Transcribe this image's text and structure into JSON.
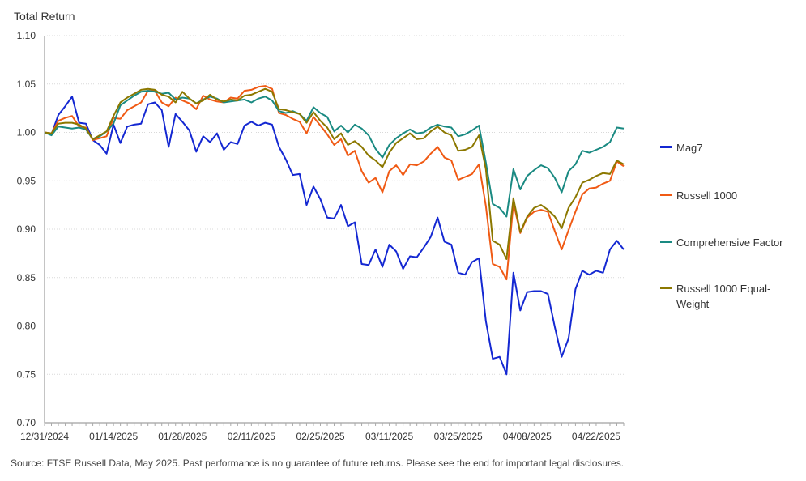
{
  "chart_data": {
    "type": "line",
    "ylabel": "Total Return",
    "xlabel": "",
    "ylim": [
      0.7,
      1.1
    ],
    "yticks": [
      "0.70",
      "0.75",
      "0.80",
      "0.85",
      "0.90",
      "0.95",
      "1.00",
      "1.05",
      "1.10"
    ],
    "xticks": [
      "12/31/2024",
      "01/14/2025",
      "01/28/2025",
      "02/11/2025",
      "02/25/2025",
      "03/11/2025",
      "03/25/2025",
      "04/08/2025",
      "04/22/2025"
    ],
    "x_start": "12/31/2024",
    "x_end": "05/06/2025",
    "grid": "horizontal dotted",
    "legend_position": "right",
    "series": [
      {
        "name": "Mag7",
        "color": "#1428d2",
        "values": [
          1.0,
          0.998,
          1.018,
          1.027,
          1.037,
          1.01,
          1.009,
          0.992,
          0.987,
          0.978,
          1.008,
          0.989,
          1.006,
          1.008,
          1.009,
          1.029,
          1.031,
          1.023,
          0.985,
          1.019,
          1.011,
          1.002,
          0.98,
          0.996,
          0.99,
          0.999,
          0.982,
          0.99,
          0.988,
          1.007,
          1.011,
          1.007,
          1.01,
          1.008,
          0.985,
          0.972,
          0.956,
          0.957,
          0.925,
          0.944,
          0.931,
          0.912,
          0.911,
          0.925,
          0.903,
          0.907,
          0.864,
          0.863,
          0.879,
          0.861,
          0.884,
          0.877,
          0.859,
          0.872,
          0.871,
          0.881,
          0.892,
          0.912,
          0.887,
          0.884,
          0.855,
          0.853,
          0.866,
          0.87,
          0.805,
          0.766,
          0.768,
          0.75,
          0.855,
          0.816,
          0.835,
          0.836,
          0.836,
          0.833,
          0.799,
          0.768,
          0.787,
          0.838,
          0.857,
          0.853,
          0.857,
          0.855,
          0.879,
          0.888,
          0.879
        ]
      },
      {
        "name": "Russell 1000",
        "color": "#f05a14",
        "values": [
          1.0,
          0.999,
          1.012,
          1.015,
          1.017,
          1.006,
          1.005,
          0.992,
          0.994,
          0.996,
          1.015,
          1.014,
          1.023,
          1.027,
          1.031,
          1.043,
          1.043,
          1.031,
          1.027,
          1.036,
          1.033,
          1.03,
          1.024,
          1.038,
          1.034,
          1.032,
          1.031,
          1.036,
          1.035,
          1.043,
          1.044,
          1.047,
          1.048,
          1.045,
          1.02,
          1.018,
          1.014,
          1.011,
          0.999,
          1.016,
          1.007,
          0.998,
          0.987,
          0.993,
          0.976,
          0.981,
          0.96,
          0.948,
          0.953,
          0.938,
          0.96,
          0.966,
          0.956,
          0.967,
          0.966,
          0.97,
          0.978,
          0.985,
          0.974,
          0.971,
          0.951,
          0.954,
          0.957,
          0.967,
          0.924,
          0.864,
          0.861,
          0.848,
          0.927,
          0.896,
          0.912,
          0.918,
          0.92,
          0.918,
          0.898,
          0.879,
          0.899,
          0.918,
          0.936,
          0.942,
          0.943,
          0.947,
          0.95,
          0.97,
          0.965
        ]
      },
      {
        "name": "Comprehensive Factor",
        "color": "#1a8a82",
        "values": [
          1.0,
          0.997,
          1.006,
          1.005,
          1.004,
          1.005,
          1.003,
          0.993,
          0.996,
          1.001,
          1.009,
          1.028,
          1.033,
          1.038,
          1.042,
          1.043,
          1.042,
          1.04,
          1.041,
          1.034,
          1.036,
          1.035,
          1.03,
          1.034,
          1.037,
          1.035,
          1.031,
          1.032,
          1.033,
          1.034,
          1.031,
          1.035,
          1.037,
          1.033,
          1.022,
          1.02,
          1.022,
          1.019,
          1.012,
          1.026,
          1.02,
          1.016,
          1.001,
          1.007,
          1.0,
          1.008,
          1.004,
          0.997,
          0.983,
          0.974,
          0.987,
          0.994,
          0.999,
          1.003,
          0.999,
          1.0,
          1.005,
          1.008,
          1.006,
          1.005,
          0.996,
          0.998,
          1.002,
          1.007,
          0.969,
          0.926,
          0.922,
          0.913,
          0.962,
          0.941,
          0.955,
          0.961,
          0.966,
          0.963,
          0.953,
          0.938,
          0.96,
          0.967,
          0.981,
          0.979,
          0.982,
          0.985,
          0.99,
          1.005,
          1.004
        ]
      },
      {
        "name": "Russell 1000 Equal-Weight",
        "color": "#8c7800",
        "values": [
          1.0,
          0.999,
          1.009,
          1.01,
          1.01,
          1.008,
          1.004,
          0.993,
          0.997,
          1.001,
          1.017,
          1.031,
          1.036,
          1.04,
          1.044,
          1.045,
          1.044,
          1.039,
          1.037,
          1.031,
          1.042,
          1.035,
          1.03,
          1.033,
          1.039,
          1.034,
          1.032,
          1.034,
          1.033,
          1.038,
          1.039,
          1.042,
          1.045,
          1.042,
          1.024,
          1.023,
          1.021,
          1.019,
          1.01,
          1.021,
          1.012,
          1.005,
          0.993,
          0.999,
          0.987,
          0.991,
          0.985,
          0.976,
          0.971,
          0.964,
          0.979,
          0.989,
          0.994,
          0.999,
          0.993,
          0.994,
          1.001,
          1.006,
          1.0,
          0.997,
          0.981,
          0.982,
          0.985,
          0.997,
          0.962,
          0.888,
          0.884,
          0.869,
          0.932,
          0.897,
          0.913,
          0.922,
          0.925,
          0.92,
          0.913,
          0.901,
          0.922,
          0.933,
          0.948,
          0.951,
          0.955,
          0.958,
          0.957,
          0.971,
          0.967
        ]
      }
    ]
  },
  "source_note": "Source: FTSE Russell Data, May 2025. Past performance is no guarantee of future returns. Please see the end for important legal disclosures."
}
